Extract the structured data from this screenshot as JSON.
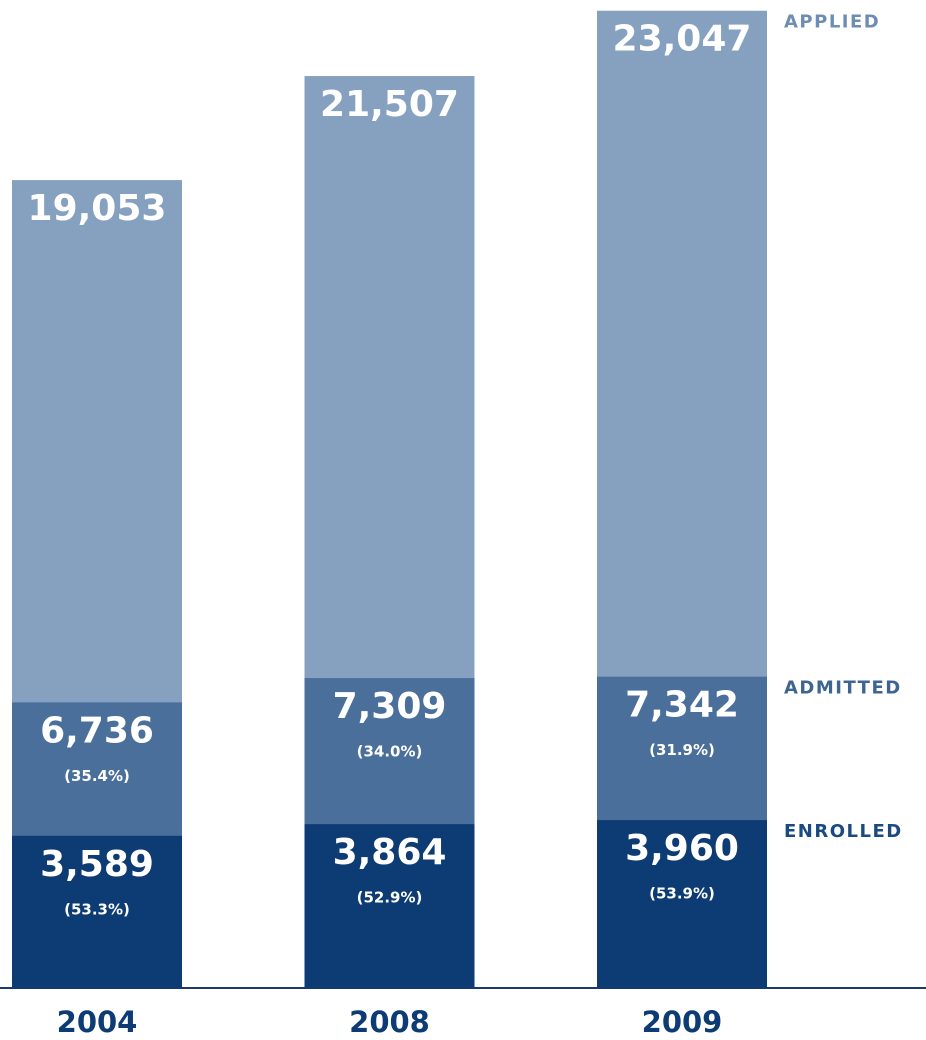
{
  "chart_data": {
    "type": "bar",
    "categories": [
      "2004",
      "2008",
      "2009"
    ],
    "ylim": [
      0,
      23300
    ],
    "series": [
      {
        "name": "APPLIED",
        "color": "#85a1bf",
        "values": [
          19053,
          21507,
          23047
        ],
        "value_labels": [
          "19,053",
          "21,507",
          "23,047"
        ]
      },
      {
        "name": "ADMITTED",
        "color": "#4a6f9a",
        "values": [
          6736,
          7309,
          7342
        ],
        "value_labels": [
          "6,736",
          "7,309",
          "7,342"
        ],
        "rate_labels": [
          "(35.4%)",
          "(34.0%)",
          "(31.9%)"
        ]
      },
      {
        "name": "ENROLLED",
        "color": "#0d3b73",
        "values": [
          3589,
          3864,
          3960
        ],
        "value_labels": [
          "3,589",
          "3,864",
          "3,960"
        ],
        "rate_labels": [
          "(53.3%)",
          "(52.9%)",
          "(53.9%)"
        ]
      }
    ]
  }
}
